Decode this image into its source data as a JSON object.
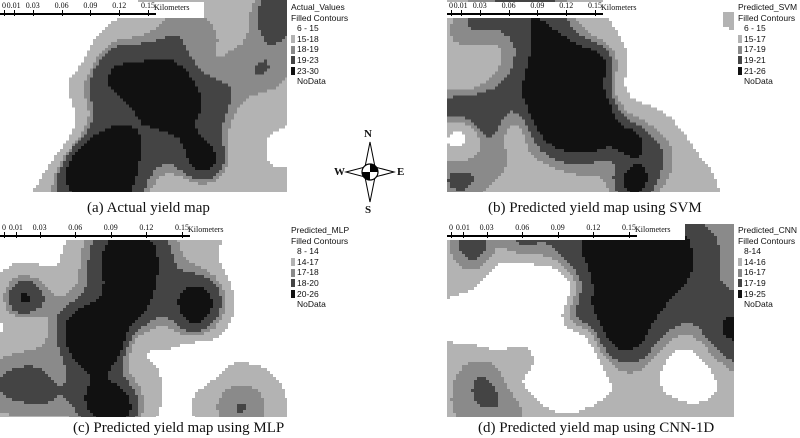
{
  "colors": {
    "level1": "#ffffff",
    "level2": "#b3b3b3",
    "level3": "#8a8a8a",
    "level4": "#444444",
    "level5": "#111111"
  },
  "compass": {
    "n": "N",
    "s": "S",
    "e": "E",
    "w": "W",
    "icon": "compass-rose-icon"
  },
  "scalebar": {
    "ticks": [
      "0",
      "0.01",
      "0.03",
      "0.06",
      "0.09",
      "0.12",
      "0.15"
    ],
    "unit": "Kilometers"
  },
  "panels": [
    {
      "caption": "(a) Actual yield map",
      "legend": {
        "title": "Actual_Values",
        "subtitle": "Filled Contours",
        "items": [
          "6 - 15",
          "15-18",
          "18-19",
          "19-23",
          "23-30"
        ],
        "nodata": "NoData"
      }
    },
    {
      "caption": "(b) Predicted yield map using SVM",
      "legend": {
        "title": "Predicted_SVM",
        "subtitle": "Filled Contours",
        "items": [
          "6 - 15",
          "15-17",
          "17-19",
          "19-21",
          "21-26"
        ],
        "nodata": "NoData"
      }
    },
    {
      "caption": "(c) Predicted yield map using MLP",
      "legend": {
        "title": "Predicted_MLP",
        "subtitle": "Filled Contours",
        "items": [
          "8 - 14",
          "14-17",
          "17-18",
          "18-20",
          "20-26"
        ],
        "nodata": "NoData"
      }
    },
    {
      "caption": "(d) Predicted yield map using CNN-1D",
      "legend": {
        "title": "Predicted_CNN",
        "subtitle": "Filled Contours",
        "items": [
          "8-14",
          "14-16",
          "16-17",
          "17-19",
          "19-25"
        ],
        "nodata": "NoData"
      }
    }
  ]
}
